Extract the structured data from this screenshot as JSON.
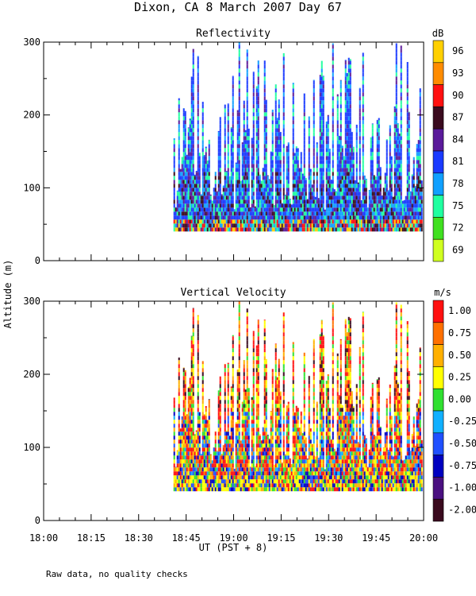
{
  "chart_data": {
    "title": "Dixon, CA  8 March 2007  Day  67",
    "ylabel": "Altitude (m)",
    "xlabel": "UT  (PST + 8)",
    "footnote": "Raw data, no quality checks",
    "type": "heatmap",
    "x_ticks": [
      "18:00",
      "18:15",
      "18:30",
      "18:45",
      "19:00",
      "19:15",
      "19:30",
      "19:45",
      "20:00"
    ],
    "xlim_minutes_ut": [
      1080,
      1200
    ],
    "data_start_minutes_ut": 1121,
    "data_min_altitude_m": 40,
    "panels": [
      {
        "title": "Reflectivity",
        "unit": "dB",
        "ylim": [
          0,
          300
        ],
        "y_ticks": [
          0,
          100,
          200,
          300
        ],
        "colorbar_labels": [
          "96",
          "93",
          "90",
          "87",
          "84",
          "81",
          "78",
          "75",
          "72",
          "69"
        ],
        "colorbar_colors": [
          "#ffd000",
          "#ff8c00",
          "#ff1010",
          "#3a0a1e",
          "#5a1a9a",
          "#1a3aff",
          "#10a0ff",
          "#20ffa0",
          "#40e020",
          "#d0ff20"
        ]
      },
      {
        "title": "Vertical Velocity",
        "unit": "m/s",
        "ylim": [
          0,
          300
        ],
        "y_ticks": [
          0,
          100,
          200,
          300
        ],
        "colorbar_labels": [
          "1.00",
          "0.75",
          "0.50",
          "0.25",
          "0.00",
          "-0.25",
          "-0.50",
          "-0.75",
          "-1.00",
          "-2.00"
        ],
        "colorbar_colors": [
          "#ff1010",
          "#ff7000",
          "#ffb000",
          "#ffff00",
          "#30e030",
          "#10b0ff",
          "#2050ff",
          "#0000c0",
          "#4a1080",
          "#3a0a1e"
        ]
      }
    ]
  }
}
